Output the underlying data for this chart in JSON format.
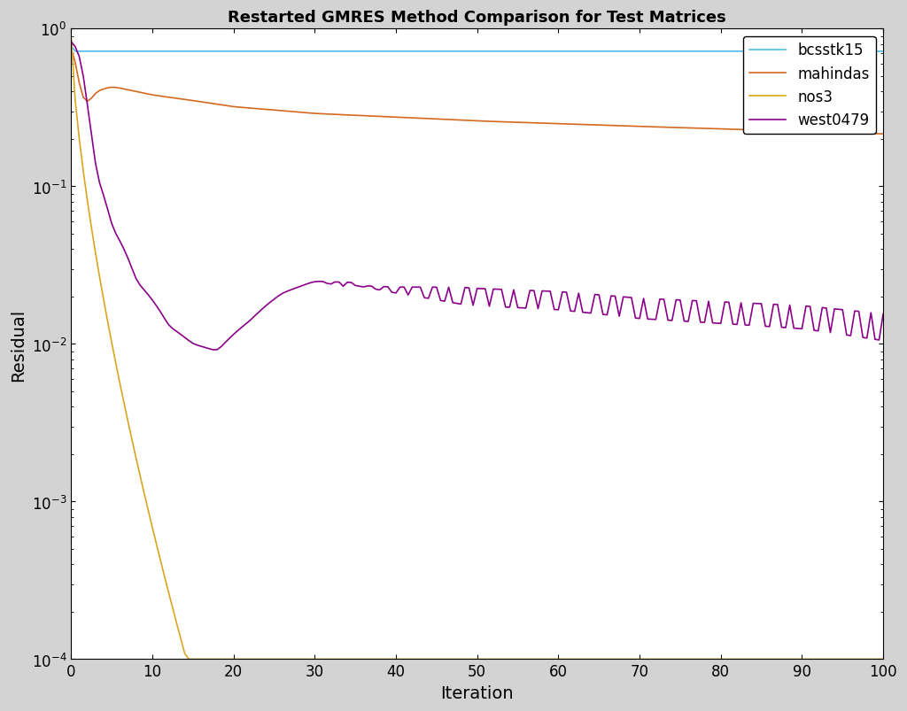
{
  "title": "Restarted GMRES Method Comparison for Test Matrices",
  "xlabel": "Iteration",
  "ylabel": "Residual",
  "xlim": [
    0,
    100
  ],
  "ylim_log": [
    -4,
    0
  ],
  "background_color": "#d3d3d3",
  "plot_background": "#ffffff",
  "series": {
    "bcsstk15": {
      "color": "#4dbbec",
      "linewidth": 1.2
    },
    "mahindas": {
      "color": "#d2691e",
      "linewidth": 1.2
    },
    "nos3": {
      "color": "#daa520",
      "linewidth": 1.2
    },
    "west0479": {
      "color": "#8b008b",
      "linewidth": 1.2
    }
  },
  "n_points": 201
}
